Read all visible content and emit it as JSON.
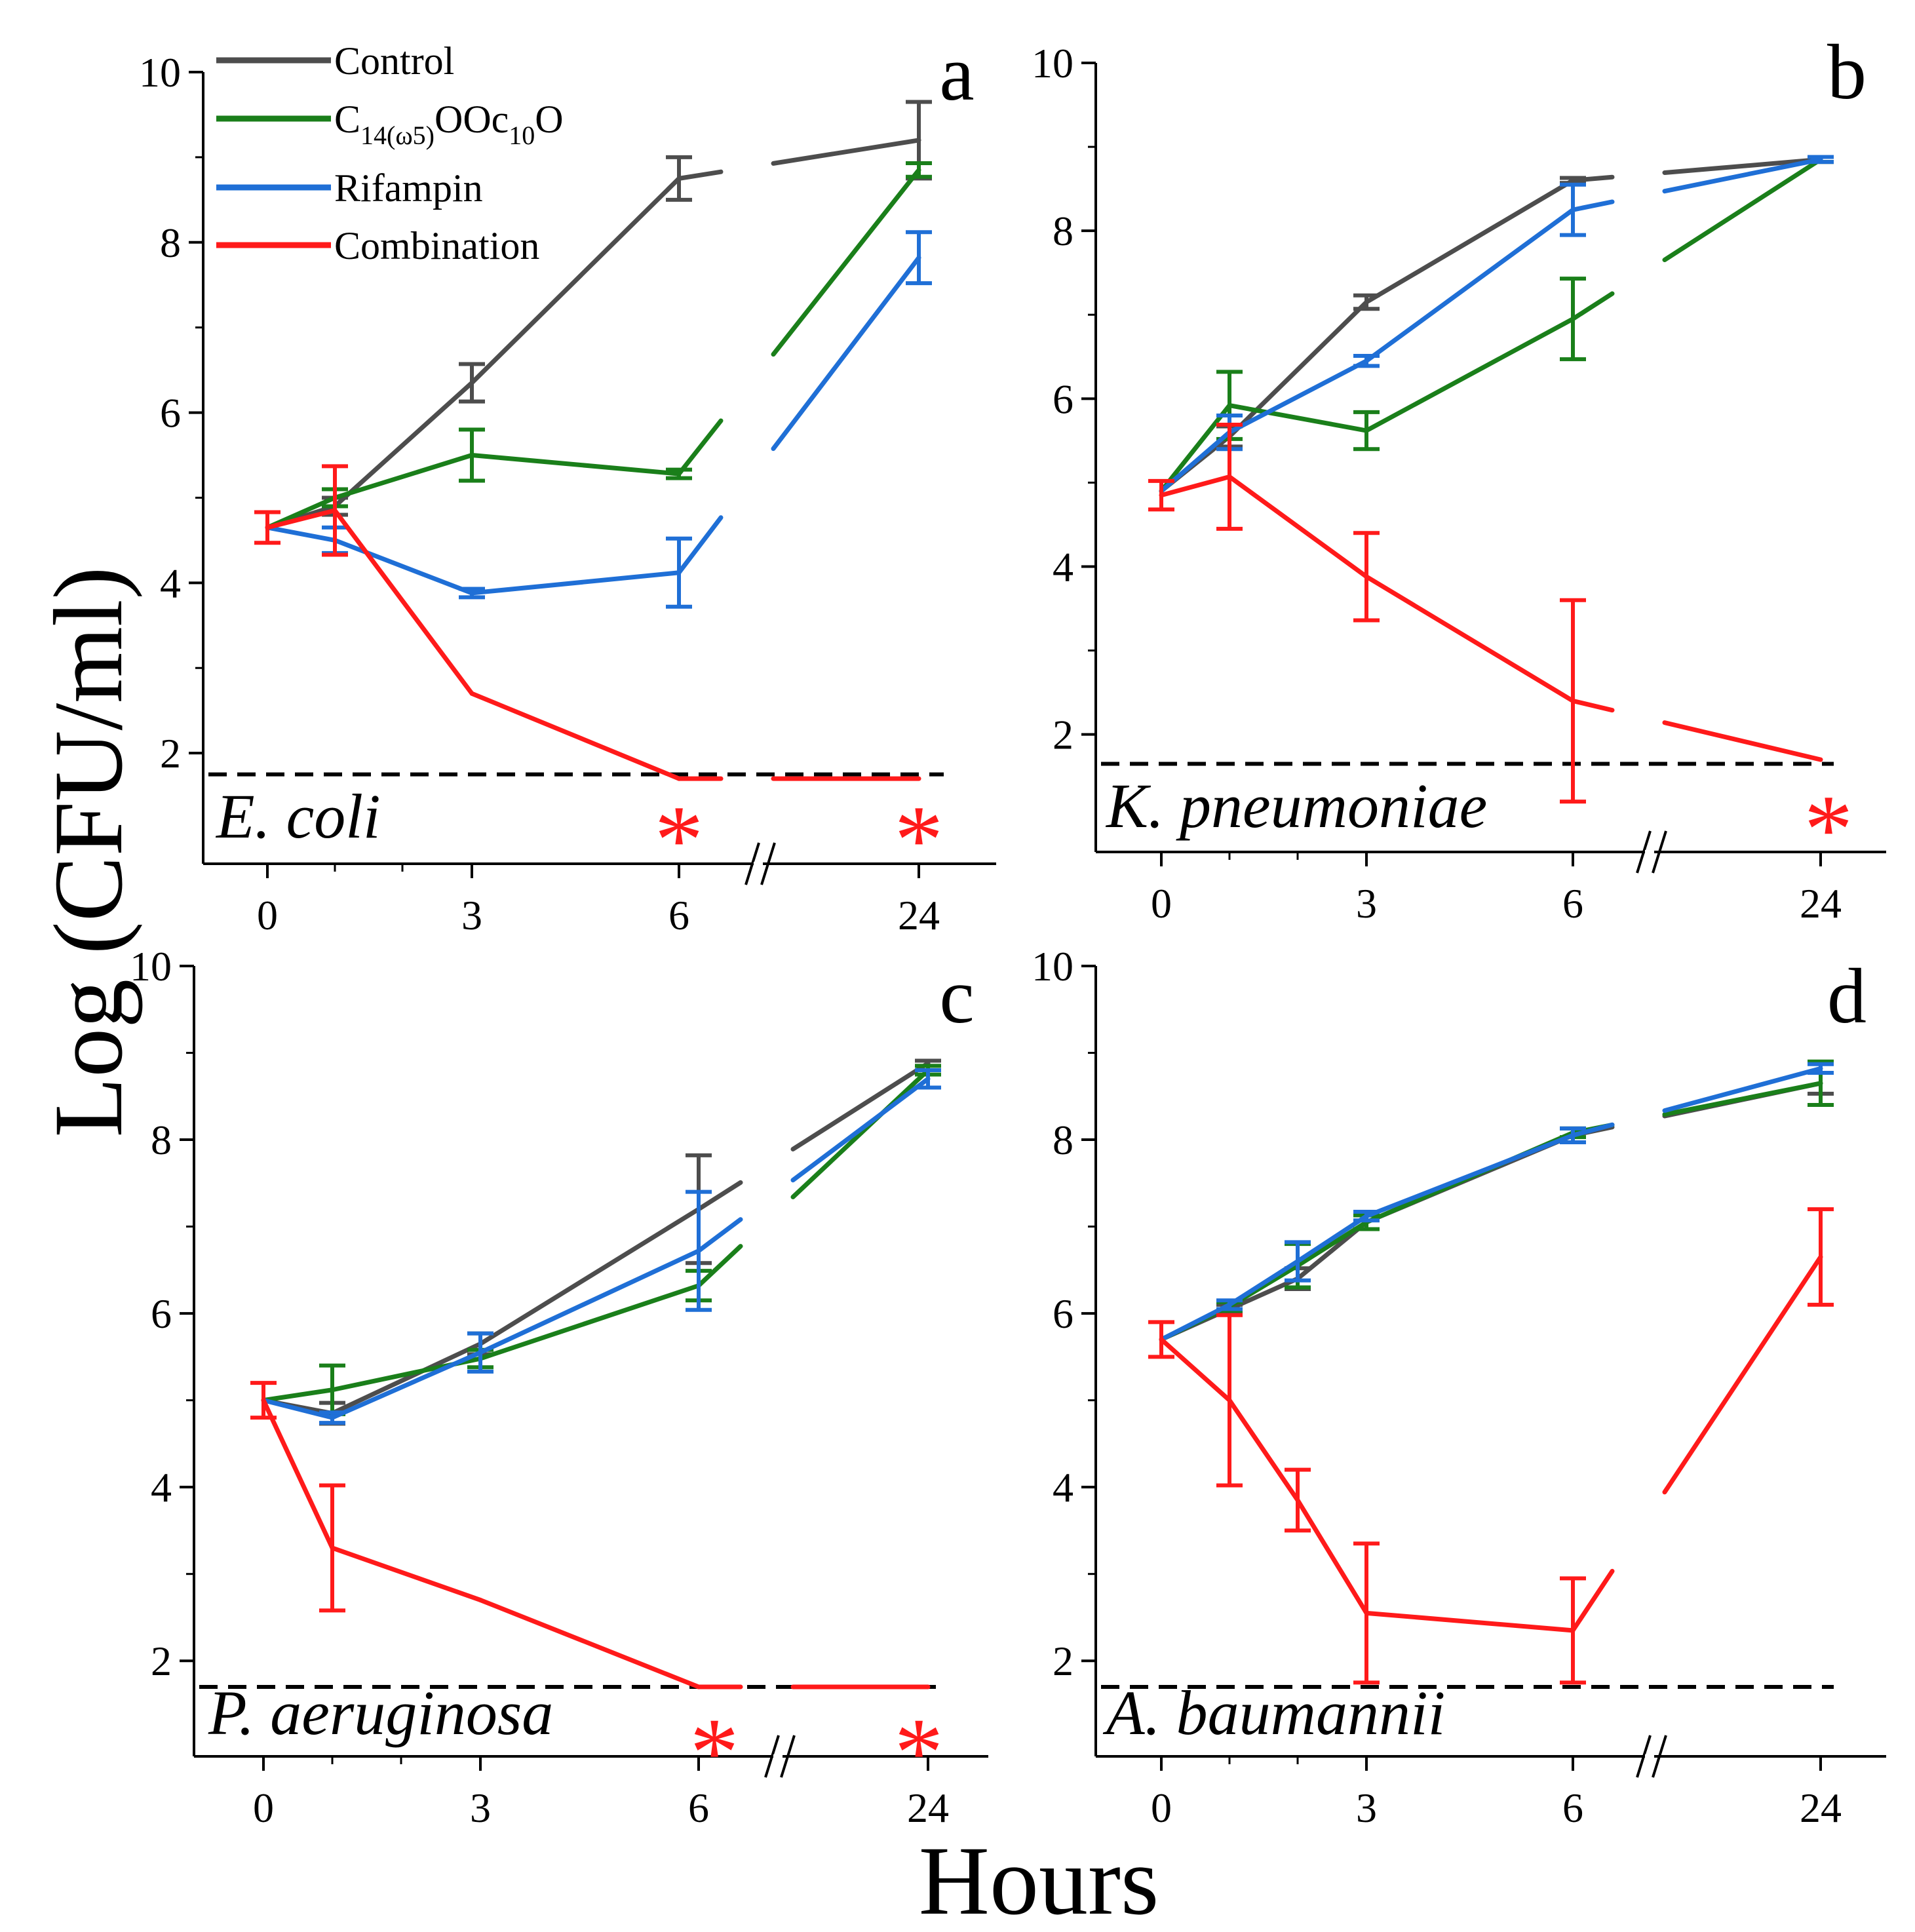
{
  "figure": {
    "ylabel": "Log (CFU/ml)",
    "xlabel": "Hours"
  },
  "legend": [
    {
      "label": "Control",
      "color": "#4d4d4d"
    },
    {
      "label": "C14(ω5)OOc10O",
      "label_base": "C",
      "label_sub1": "14(ω5)",
      "label_mid": "OOc",
      "label_sub2": "10",
      "label_end": "O",
      "color": "#1a7f1a"
    },
    {
      "label": "Rifampin",
      "color": "#1f6fd6"
    },
    {
      "label": "Combination",
      "color": "#ff1a1a"
    }
  ],
  "chart_data": [
    {
      "type": "line",
      "panel": "a",
      "organism": "E. coli",
      "x_tick_labels": [
        "0",
        "3",
        "6",
        "24"
      ],
      "y_tick_labels": [
        "2",
        "4",
        "6",
        "8",
        "10"
      ],
      "ylim": [
        0.7,
        10
      ],
      "detection_limit": 1.75,
      "asterisks": [
        "6",
        "24"
      ],
      "series": [
        {
          "name": "Control",
          "x": [
            0,
            1,
            3,
            6,
            24
          ],
          "values": [
            4.65,
            4.9,
            6.35,
            8.75,
            9.2
          ],
          "errors": [
            0,
            0.1,
            0.22,
            0.25,
            0.45
          ]
        },
        {
          "name": "C14(ω5)OOc10O",
          "x": [
            0,
            1,
            3,
            6,
            24
          ],
          "values": [
            4.65,
            5.0,
            5.5,
            5.28,
            8.85
          ],
          "errors": [
            0,
            0.1,
            0.3,
            0.05,
            0.08
          ]
        },
        {
          "name": "Rifampin",
          "x": [
            0,
            1,
            3,
            6,
            24
          ],
          "values": [
            4.65,
            4.5,
            3.88,
            4.12,
            7.82
          ],
          "errors": [
            0,
            0.15,
            0.05,
            0.4,
            0.3
          ]
        },
        {
          "name": "Combination",
          "x": [
            0,
            1,
            3,
            6,
            24
          ],
          "values": [
            4.65,
            4.85,
            2.7,
            1.7,
            1.7
          ],
          "errors": [
            0.18,
            0.52,
            0,
            0,
            0
          ]
        }
      ]
    },
    {
      "type": "line",
      "panel": "b",
      "organism": "K. pneumoniae",
      "x_tick_labels": [
        "0",
        "3",
        "6",
        "24"
      ],
      "y_tick_labels": [
        "2",
        "4",
        "6",
        "8",
        "10"
      ],
      "ylim": [
        0.6,
        10
      ],
      "detection_limit": 1.65,
      "asterisks": [
        "24"
      ],
      "series": [
        {
          "name": "Control",
          "x": [
            0,
            1,
            3,
            6,
            24
          ],
          "values": [
            4.9,
            5.55,
            7.15,
            8.6,
            8.85
          ],
          "errors": [
            0,
            0.12,
            0.08,
            0.03,
            0.03
          ]
        },
        {
          "name": "C14(ω5)OOc10O",
          "x": [
            0,
            1,
            3,
            6,
            24
          ],
          "values": [
            4.9,
            5.92,
            5.62,
            6.95,
            8.85
          ],
          "errors": [
            0,
            0.4,
            0.22,
            0.48,
            0.03
          ]
        },
        {
          "name": "Rifampin",
          "x": [
            0,
            1,
            3,
            6,
            24
          ],
          "values": [
            4.9,
            5.6,
            6.45,
            8.25,
            8.85
          ],
          "errors": [
            0,
            0.2,
            0.06,
            0.3,
            0.03
          ]
        },
        {
          "name": "Combination",
          "x": [
            0,
            1,
            3,
            6,
            24
          ],
          "values": [
            4.85,
            5.07,
            3.88,
            2.4,
            1.7
          ],
          "errors": [
            0.17,
            0.62,
            0.52,
            1.2,
            0
          ]
        }
      ]
    },
    {
      "type": "line",
      "panel": "c",
      "organism": "P. aeruginosa",
      "x_tick_labels": [
        "0",
        "3",
        "6",
        "24"
      ],
      "y_tick_labels": [
        "2",
        "4",
        "6",
        "8",
        "10"
      ],
      "ylim": [
        0.9,
        10
      ],
      "detection_limit": 1.7,
      "asterisks": [
        "6",
        "24"
      ],
      "series": [
        {
          "name": "Control",
          "x": [
            0,
            1,
            3,
            6,
            24
          ],
          "values": [
            5.0,
            4.85,
            5.65,
            7.2,
            8.88
          ],
          "errors": [
            0,
            0.12,
            0.12,
            0.62,
            0.03
          ]
        },
        {
          "name": "C14(ω5)OOc10O",
          "x": [
            0,
            1,
            3,
            6,
            24
          ],
          "values": [
            5.0,
            5.12,
            5.48,
            6.32,
            8.8
          ],
          "errors": [
            0,
            0.28,
            0.1,
            0.17,
            0.05
          ]
        },
        {
          "name": "Rifampin",
          "x": [
            0,
            1,
            3,
            6,
            24
          ],
          "values": [
            5.0,
            4.8,
            5.55,
            6.72,
            8.7
          ],
          "errors": [
            0,
            0.06,
            0.22,
            0.68,
            0.1
          ]
        },
        {
          "name": "Combination",
          "x": [
            0,
            1,
            3,
            6,
            24
          ],
          "values": [
            5.0,
            3.3,
            2.7,
            1.7,
            1.7
          ],
          "errors": [
            0.2,
            0.72,
            0,
            0,
            0
          ]
        }
      ]
    },
    {
      "type": "line",
      "panel": "d",
      "organism": "A. baumannii",
      "x_tick_labels": [
        "0",
        "3",
        "6",
        "24"
      ],
      "y_tick_labels": [
        "2",
        "4",
        "6",
        "8",
        "10"
      ],
      "ylim": [
        0.9,
        10
      ],
      "detection_limit": 1.7,
      "asterisks": [],
      "series": [
        {
          "name": "Control",
          "x": [
            0,
            1,
            2,
            3,
            6,
            24
          ],
          "values": [
            5.7,
            6.05,
            6.4,
            7.05,
            8.05,
            8.65
          ],
          "errors": [
            0,
            0.05,
            0.12,
            0.08,
            0.08,
            0.12
          ]
        },
        {
          "name": "C14(ω5)OOc10O",
          "x": [
            0,
            1,
            2,
            3,
            6,
            24
          ],
          "values": [
            5.7,
            6.08,
            6.55,
            7.05,
            8.08,
            8.65
          ],
          "errors": [
            0,
            0.05,
            0.25,
            0.08,
            0.05,
            0.25
          ]
        },
        {
          "name": "Rifampin",
          "x": [
            0,
            1,
            2,
            3,
            6,
            24
          ],
          "values": [
            5.7,
            6.1,
            6.6,
            7.12,
            8.05,
            8.82
          ],
          "errors": [
            0,
            0.05,
            0.22,
            0.05,
            0.08,
            0.05
          ]
        },
        {
          "name": "Combination",
          "x": [
            0,
            1,
            2,
            3,
            6,
            24
          ],
          "values": [
            5.7,
            5.0,
            3.85,
            2.55,
            2.35,
            6.65
          ],
          "errors": [
            0.2,
            0.98,
            0.35,
            0.8,
            0.6,
            0.55
          ]
        }
      ]
    }
  ]
}
